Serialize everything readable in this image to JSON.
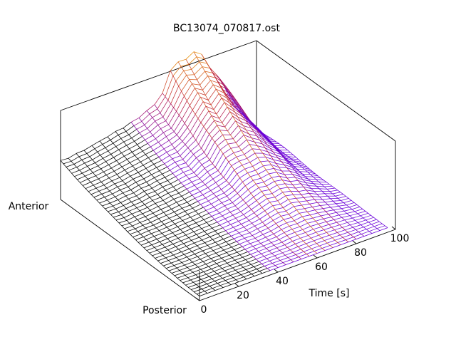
{
  "chart_data": {
    "type": "surface",
    "title": "BC13074_070817.ost",
    "xlabel": "Time [s]",
    "y_labels": {
      "near": "Posterior",
      "far": "Anterior"
    },
    "x_ticks": [
      "0",
      "20",
      "40",
      "60",
      "80",
      "100"
    ],
    "xlim": [
      0,
      100
    ],
    "ylim": [
      0,
      1
    ],
    "grid": false,
    "colormap": {
      "low": "#6a00d8",
      "mid": "#c0203a",
      "high": "#f0a800",
      "ink": "#000000"
    },
    "surface": {
      "x_step": 4,
      "y_rows": 50,
      "peak": {
        "x": [
          0,
          4,
          8,
          12,
          16,
          20,
          24,
          28,
          32,
          36,
          40,
          44,
          48,
          52,
          56,
          60,
          64,
          68,
          72,
          76,
          80,
          84,
          88,
          92,
          96
        ],
        "z": [
          0.35,
          0.35,
          0.36,
          0.37,
          0.38,
          0.4,
          0.41,
          0.43,
          0.44,
          0.46,
          0.48,
          0.5,
          0.55,
          0.62,
          0.78,
          0.86,
          0.82,
          0.9,
          0.82,
          0.7,
          0.6,
          0.45,
          0.3,
          0.18,
          0.1
        ]
      },
      "note_free": true
    }
  }
}
